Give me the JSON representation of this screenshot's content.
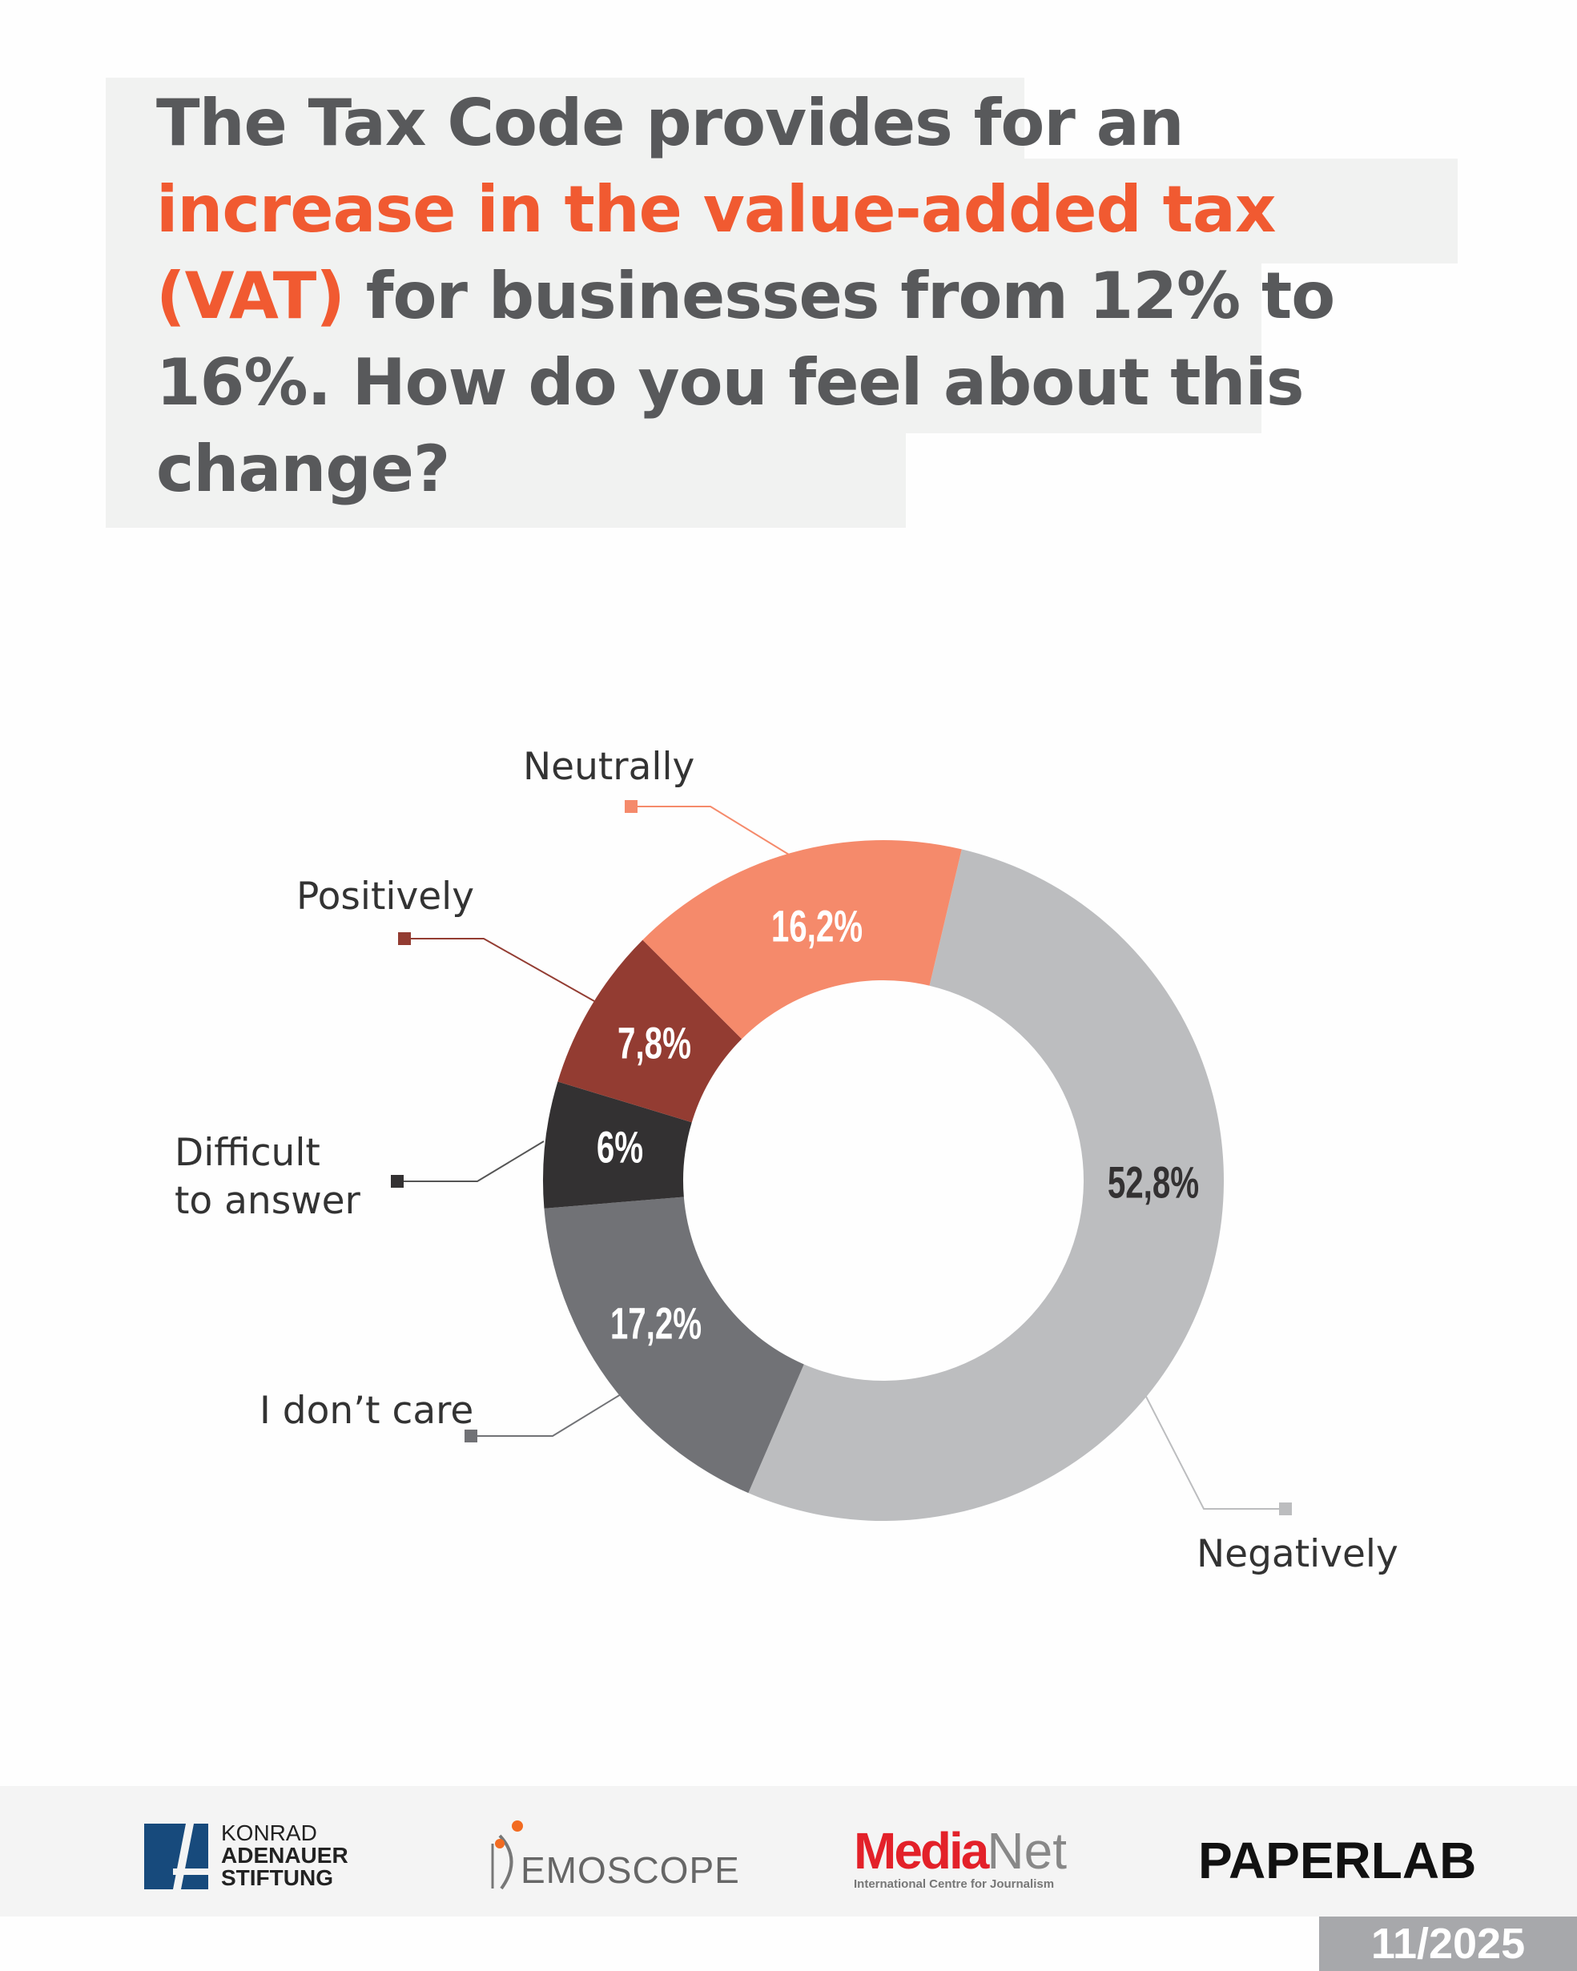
{
  "title": {
    "part1": "The Tax Code provides for an ",
    "highlight": "increase in the value-added tax (VAT)",
    "part2": " for businesses from 12% to 16%. How do you feel about this change?"
  },
  "chart_data": {
    "type": "pie",
    "donut": true,
    "start_angle_deg": 13.3,
    "direction": "clockwise",
    "categories": [
      "Negatively",
      "I don’t care",
      "Difficult to answer",
      "Positively",
      "Neutrally"
    ],
    "values": [
      52.8,
      17.2,
      6,
      7.8,
      16.2
    ],
    "value_labels": [
      "52,8%",
      "17,2%",
      "6%",
      "7,8%",
      "16,2%"
    ],
    "colors": [
      "#bcbdbf",
      "#717276",
      "#333132",
      "#933c32",
      "#f58a6b"
    ],
    "label_colors": [
      "#333132",
      "#ffffff",
      "#ffffff",
      "#ffffff",
      "#ffffff"
    ],
    "difficult_lines": [
      "Difficult",
      "to answer"
    ]
  },
  "footer": {
    "logos": {
      "kas": [
        "KONRAD",
        "ADENAUER",
        "STIFTUNG"
      ],
      "demoscope": "EMOSCOPE",
      "medianet": {
        "media": "Media",
        "net": "Net",
        "sub": "International Centre for Journalism"
      },
      "paperlab": "PAPERLAB"
    },
    "date": "11/2025"
  }
}
